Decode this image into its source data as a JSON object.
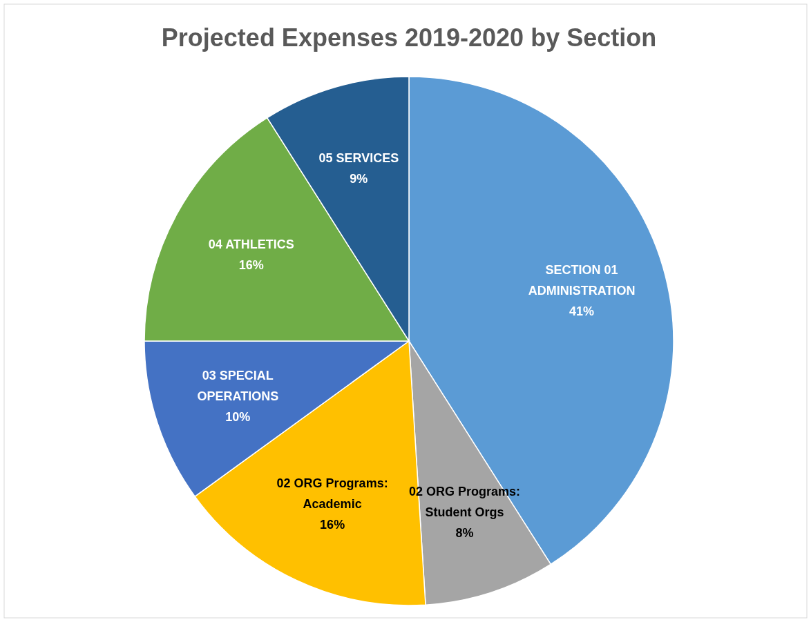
{
  "chart_data": {
    "type": "pie",
    "title": "Projected Expenses 2019-2020 by Section",
    "categories": [
      "SECTION 01 ADMINISTRATION",
      "02 ORG Programs: Student Orgs",
      "02 ORG Programs: Academic",
      "03 SPECIAL OPERATIONS",
      "04 ATHLETICS",
      "05 SERVICES"
    ],
    "values": [
      41,
      8,
      16,
      10,
      16,
      9
    ],
    "colors": [
      "#5b9bd5",
      "#a5a5a5",
      "#ffc000",
      "#4472c4",
      "#70ad47",
      "#255e91"
    ],
    "value_labels": [
      "41%",
      "8%",
      "16%",
      "10%",
      "16%",
      "9%"
    ]
  }
}
